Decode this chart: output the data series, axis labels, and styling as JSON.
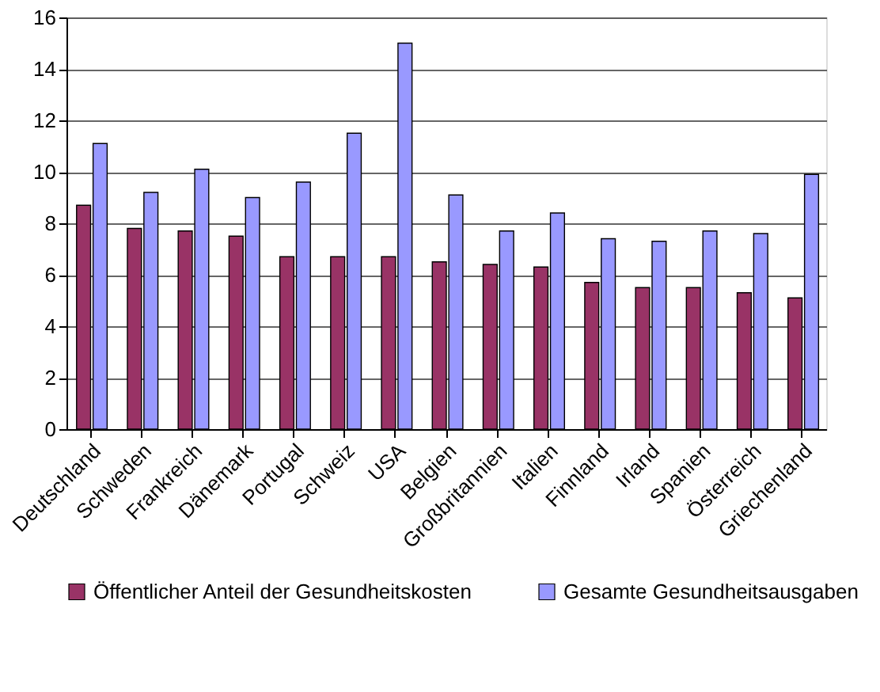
{
  "chart_data": {
    "type": "bar",
    "categories": [
      "Deutschland",
      "Schweden",
      "Frankreich",
      "Dänemark",
      "Portugal",
      "Schweiz",
      "USA",
      "Belgien",
      "Großbritannien",
      "Italien",
      "Finnland",
      "Irland",
      "Spanien",
      "Österreich",
      "Griechenland"
    ],
    "series": [
      {
        "name": "Öffentlicher Anteil der Gesundheitskosten",
        "color": "#993366",
        "values": [
          8.7,
          7.8,
          7.7,
          7.5,
          6.7,
          6.7,
          6.7,
          6.5,
          6.4,
          6.3,
          5.7,
          5.5,
          5.5,
          5.3,
          5.1
        ]
      },
      {
        "name": "Gesamte Gesundheitsausgaben",
        "color": "#9999ff",
        "values": [
          11.1,
          9.2,
          10.1,
          9.0,
          9.6,
          11.5,
          15.0,
          9.1,
          7.7,
          8.4,
          7.4,
          7.3,
          7.7,
          7.6,
          9.9
        ]
      }
    ],
    "ylim": [
      0,
      16
    ],
    "yticks": [
      0,
      2,
      4,
      6,
      8,
      10,
      12,
      14,
      16
    ],
    "grid": "y",
    "legend": "bottom"
  }
}
